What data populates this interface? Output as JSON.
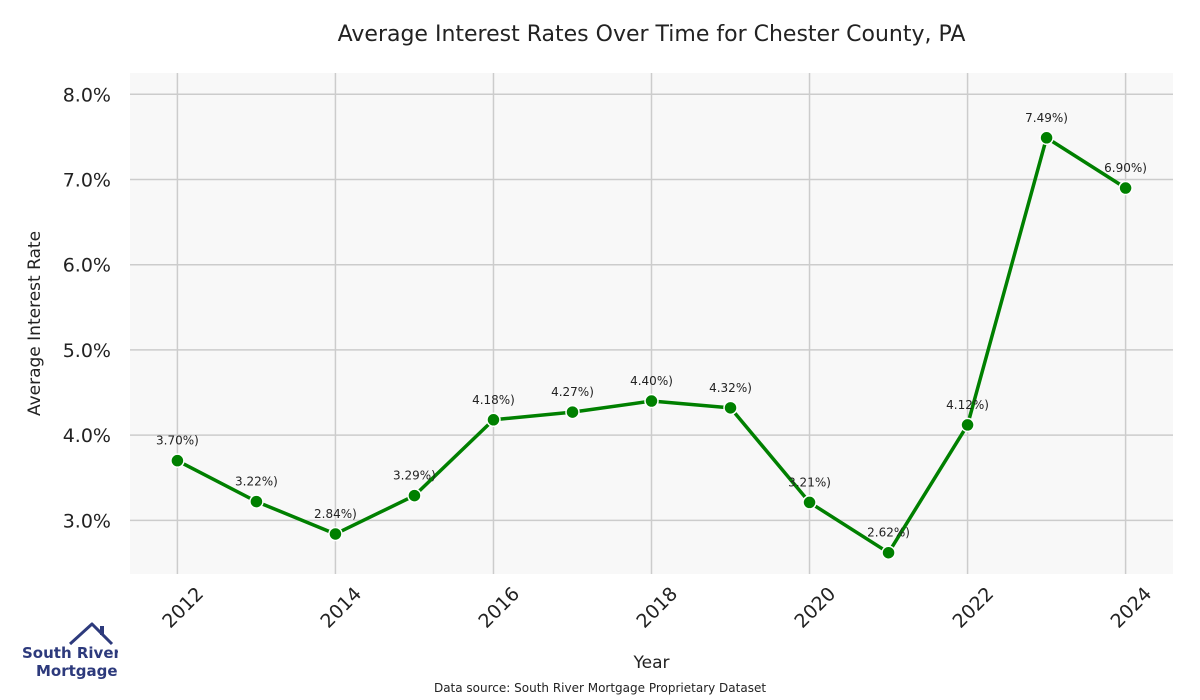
{
  "chart_data": {
    "type": "line",
    "title": "Average Interest Rates Over Time for Chester County, PA",
    "xlabel": "Year",
    "ylabel": "Average Interest Rate",
    "x": [
      2012,
      2013,
      2014,
      2015,
      2016,
      2017,
      2018,
      2019,
      2020,
      2021,
      2022,
      2023,
      2024
    ],
    "series": [
      {
        "values": [
          3.7,
          3.22,
          2.84,
          3.29,
          4.18,
          4.27,
          4.4,
          4.32,
          3.21,
          2.62,
          4.12,
          7.49,
          6.9
        ],
        "data_labels": [
          "3.70%)",
          "3.22%)",
          "2.84%)",
          "3.29%)",
          "4.18%)",
          "4.27%)",
          "4.40%)",
          "4.32%)",
          "3.21%)",
          "2.62%)",
          "4.12%)",
          "7.49%)",
          "6.90%)"
        ],
        "color": "#008000"
      }
    ],
    "xticks": [
      2012,
      2014,
      2016,
      2018,
      2020,
      2022,
      2024
    ],
    "xtick_labels": [
      "2012",
      "2014",
      "2016",
      "2018",
      "2020",
      "2022",
      "2024"
    ],
    "yticks": [
      3.0,
      4.0,
      5.0,
      6.0,
      7.0,
      8.0
    ],
    "ytick_labels": [
      "3.0%",
      "4.0%",
      "5.0%",
      "6.0%",
      "7.0%",
      "8.0%"
    ],
    "xlim": [
      2011.4,
      2024.6
    ],
    "ylim": [
      2.37,
      8.25
    ],
    "grid": true,
    "background": "#f8f8f8",
    "grid_color": "#cccccc"
  },
  "source_note": "Data source: South River Mortgage Proprietary Dataset",
  "logo": {
    "line1": "South River",
    "line2": "Mortgage",
    "color": "#2d3a7c"
  }
}
